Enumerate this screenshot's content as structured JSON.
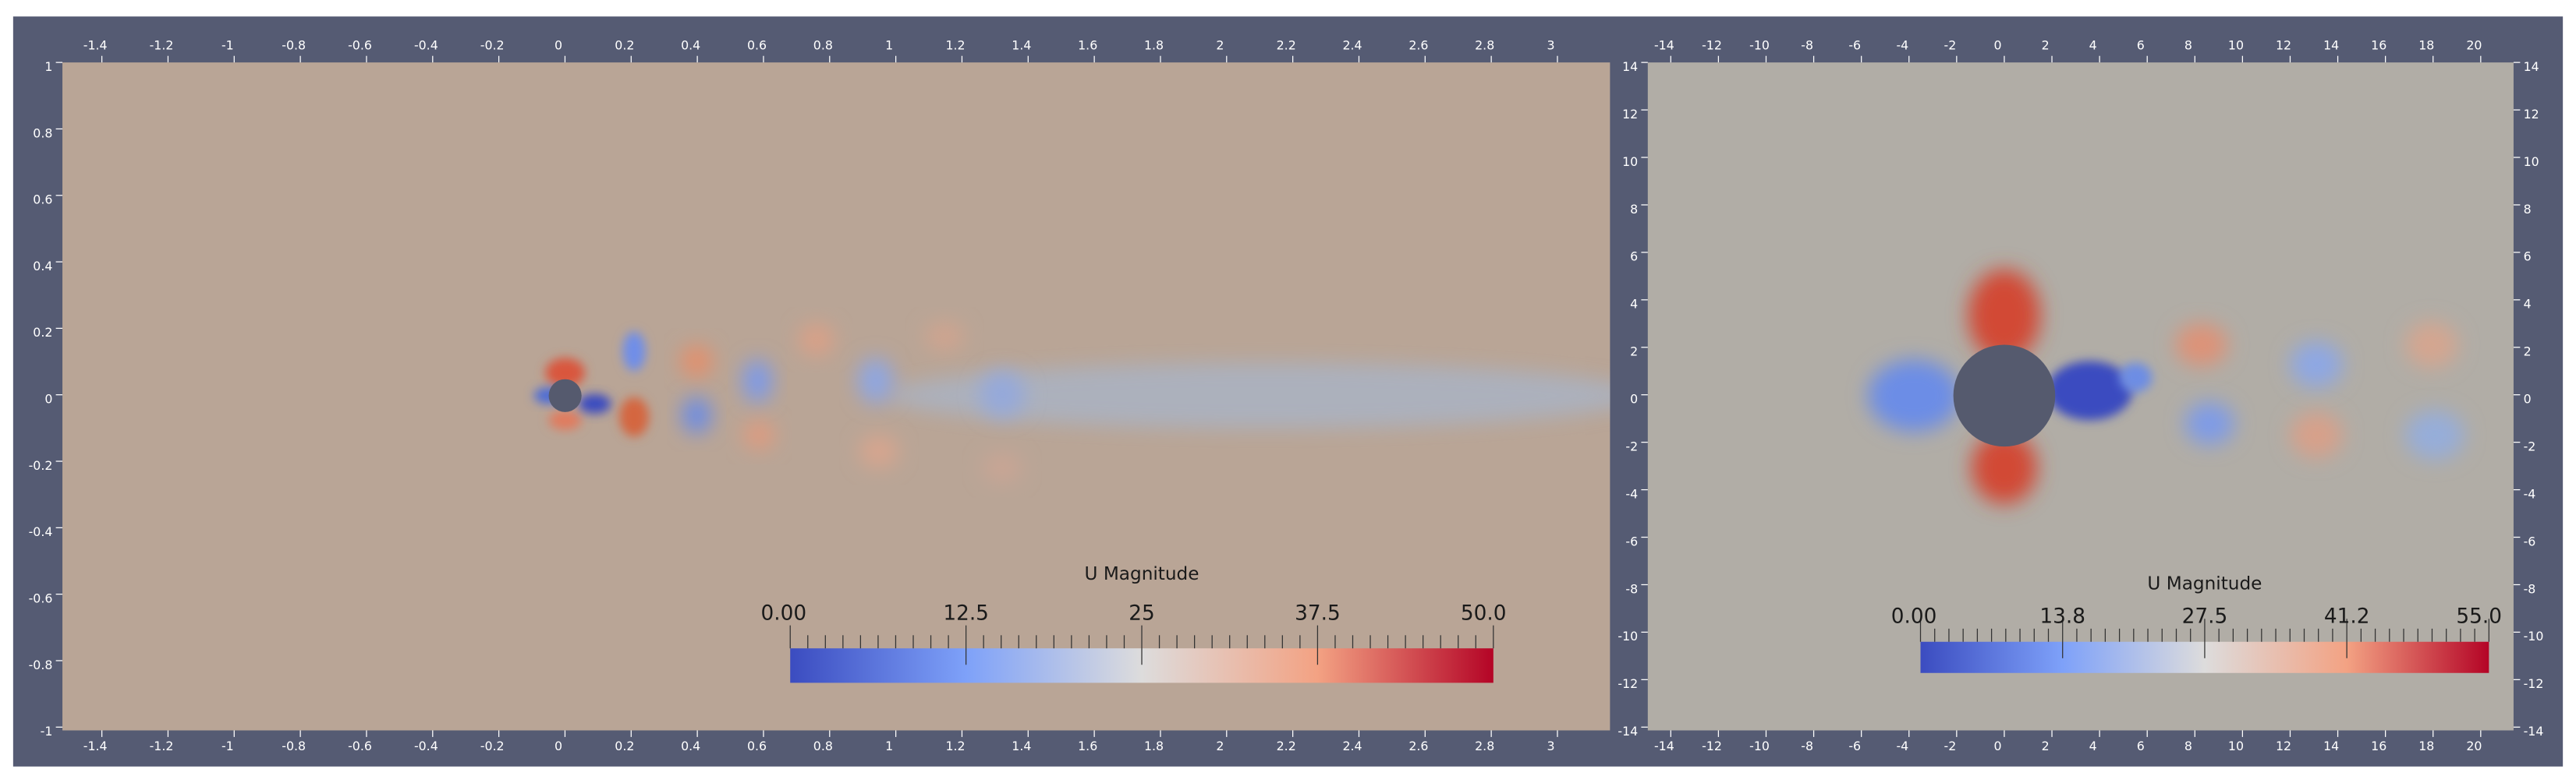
{
  "panels": [
    {
      "x_ticks": [
        "-1.4",
        "-1.2",
        "-1",
        "-0.8",
        "-0.6",
        "-0.4",
        "-0.2",
        "0",
        "0.2",
        "0.4",
        "0.6",
        "0.8",
        "1",
        "1.2",
        "1.4",
        "1.6",
        "1.8",
        "2",
        "2.2",
        "2.4",
        "2.6",
        "2.8",
        "3"
      ],
      "y_ticks": [
        "1",
        "0.8",
        "0.6",
        "0.4",
        "0.2",
        "0",
        "-0.2",
        "-0.4",
        "-0.6",
        "-0.8",
        "-1"
      ],
      "colorbar": {
        "title": "U Magnitude",
        "labels": [
          "0.00",
          "12.5",
          "25",
          "37.5",
          "50.0"
        ]
      }
    },
    {
      "x_ticks": [
        "-14",
        "-12",
        "-10",
        "-8",
        "-6",
        "-4",
        "-2",
        "0",
        "2",
        "4",
        "6",
        "8",
        "10",
        "12",
        "14",
        "16",
        "18",
        "20"
      ],
      "y_ticks": [
        "14",
        "12",
        "10",
        "8",
        "6",
        "4",
        "2",
        "0",
        "-2",
        "-4",
        "-6",
        "-8",
        "-10",
        "-12",
        "-14"
      ],
      "colorbar": {
        "title": "U Magnitude",
        "labels": [
          "0.00",
          "13.8",
          "27.5",
          "41.2",
          "55.0"
        ]
      }
    }
  ]
}
